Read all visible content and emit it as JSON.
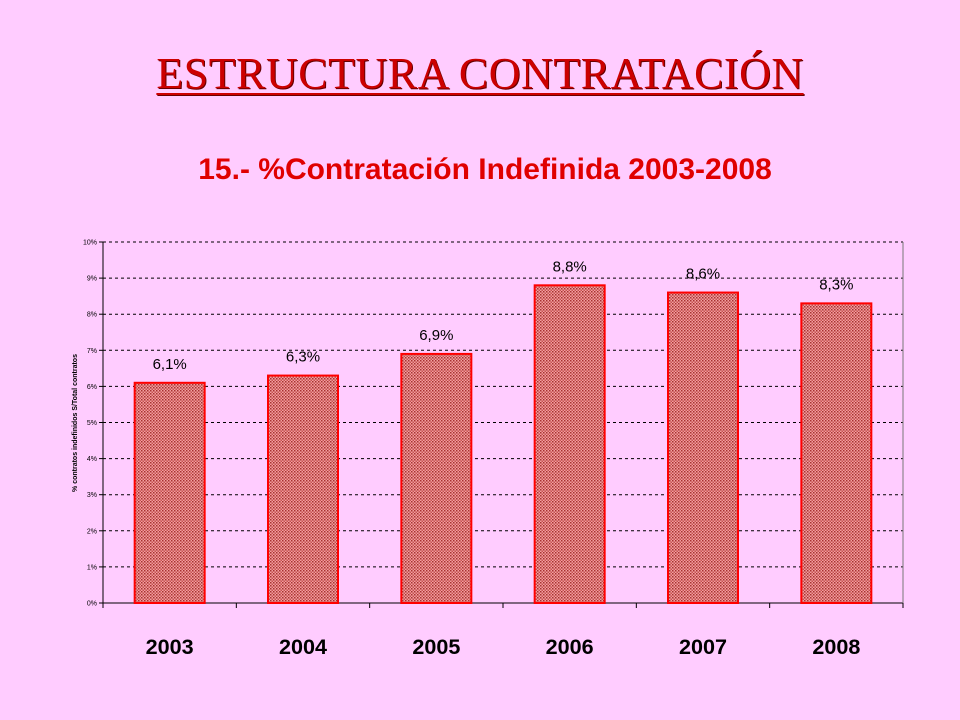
{
  "slide": {
    "title": "ESTRUCTURA CONTRATACIÓN"
  },
  "colors": {
    "background": "#ffccff",
    "title": "#cc0000",
    "chart_title": "#e00000",
    "bar_fill": "#e07a7a",
    "bar_stroke": "#ff0000"
  },
  "chart_data": {
    "type": "bar",
    "title": "15.- %Contratación Indefinida 2003-2008",
    "ylabel": "% contratos indefinidos S/Total contratos",
    "xlabel": "",
    "categories": [
      "2003",
      "2004",
      "2005",
      "2006",
      "2007",
      "2008"
    ],
    "values": [
      6.1,
      6.3,
      6.9,
      8.8,
      8.6,
      8.3
    ],
    "data_labels": [
      "6,1%",
      "6,3%",
      "6,9%",
      "8,8%",
      "8,6%",
      "8,3%"
    ],
    "ylim": [
      0,
      10
    ],
    "yticks": [
      "0%",
      "1%",
      "2%",
      "3%",
      "4%",
      "5%",
      "6%",
      "7%",
      "8%",
      "9%",
      "10%"
    ],
    "grid": true,
    "legend": "none"
  }
}
